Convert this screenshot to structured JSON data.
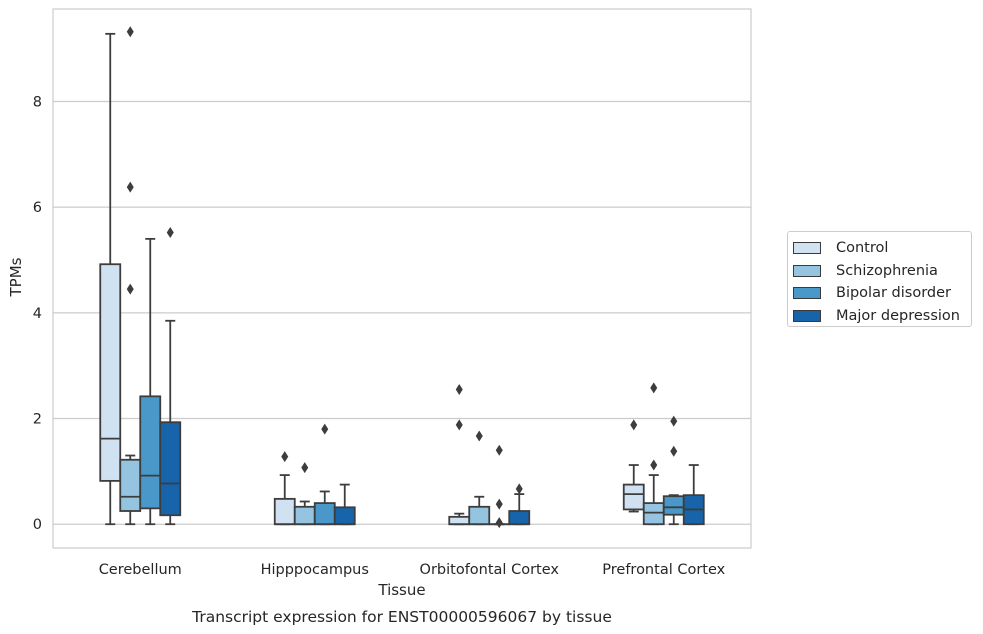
{
  "chart_data": {
    "type": "box",
    "title": "Transcript expression for ENST00000596067 by tissue",
    "xlabel": "Tissue",
    "ylabel": "TPMs",
    "ylim": [
      -0.45,
      9.75
    ],
    "yticks": [
      0,
      2,
      4,
      6,
      8
    ],
    "grid": true,
    "legend_position": "right",
    "categories": [
      "Cerebellum",
      "Hipppocampus",
      "Orbitofontal Cortex",
      "Prefrontal Cortex"
    ],
    "series": [
      {
        "name": "Control",
        "color": "#d0e1f2",
        "boxes": [
          {
            "whisker_low": 0.0,
            "q1": 0.82,
            "median": 1.62,
            "q3": 4.92,
            "whisker_high": 9.28,
            "outliers": []
          },
          {
            "whisker_low": 0.0,
            "q1": 0.0,
            "median": 0.0,
            "q3": 0.48,
            "whisker_high": 0.93,
            "outliers": [
              1.28
            ]
          },
          {
            "whisker_low": 0.0,
            "q1": 0.0,
            "median": 0.0,
            "q3": 0.14,
            "whisker_high": 0.2,
            "outliers": [
              1.88,
              2.55
            ]
          },
          {
            "whisker_low": 0.24,
            "q1": 0.28,
            "median": 0.57,
            "q3": 0.75,
            "whisker_high": 1.12,
            "outliers": [
              1.88
            ]
          }
        ]
      },
      {
        "name": "Schizophrenia",
        "color": "#94c4df",
        "boxes": [
          {
            "whisker_low": 0.0,
            "q1": 0.25,
            "median": 0.52,
            "q3": 1.22,
            "whisker_high": 1.3,
            "outliers": [
              4.45,
              6.38,
              9.32
            ]
          },
          {
            "whisker_low": 0.0,
            "q1": 0.0,
            "median": 0.0,
            "q3": 0.33,
            "whisker_high": 0.43,
            "outliers": [
              1.07
            ]
          },
          {
            "whisker_low": 0.0,
            "q1": 0.0,
            "median": 0.0,
            "q3": 0.33,
            "whisker_high": 0.52,
            "outliers": [
              1.67
            ]
          },
          {
            "whisker_low": 0.0,
            "q1": 0.0,
            "median": 0.22,
            "q3": 0.4,
            "whisker_high": 0.93,
            "outliers": [
              1.12,
              2.58
            ]
          }
        ]
      },
      {
        "name": "Bipolar disorder",
        "color": "#4a98c9",
        "boxes": [
          {
            "whisker_low": 0.0,
            "q1": 0.3,
            "median": 0.92,
            "q3": 2.42,
            "whisker_high": 5.4,
            "outliers": []
          },
          {
            "whisker_low": 0.0,
            "q1": 0.0,
            "median": 0.0,
            "q3": 0.4,
            "whisker_high": 0.62,
            "outliers": [
              1.8
            ]
          },
          {
            "whisker_low": 0.0,
            "q1": 0.0,
            "median": 0.0,
            "q3": 0.0,
            "whisker_high": 0.0,
            "outliers": [
              0.03,
              0.38,
              1.4
            ]
          },
          {
            "whisker_low": 0.0,
            "q1": 0.18,
            "median": 0.32,
            "q3": 0.53,
            "whisker_high": 0.55,
            "outliers": [
              1.38,
              1.95
            ]
          }
        ]
      },
      {
        "name": "Major depression",
        "color": "#1764ab",
        "boxes": [
          {
            "whisker_low": 0.0,
            "q1": 0.17,
            "median": 0.77,
            "q3": 1.93,
            "whisker_high": 3.85,
            "outliers": [
              5.52
            ]
          },
          {
            "whisker_low": 0.0,
            "q1": 0.0,
            "median": 0.0,
            "q3": 0.32,
            "whisker_high": 0.75,
            "outliers": []
          },
          {
            "whisker_low": 0.0,
            "q1": 0.0,
            "median": 0.0,
            "q3": 0.25,
            "whisker_high": 0.57,
            "outliers": [
              0.67
            ]
          },
          {
            "whisker_low": 0.0,
            "q1": 0.0,
            "median": 0.28,
            "q3": 0.55,
            "whisker_high": 1.12,
            "outliers": []
          }
        ]
      }
    ]
  }
}
